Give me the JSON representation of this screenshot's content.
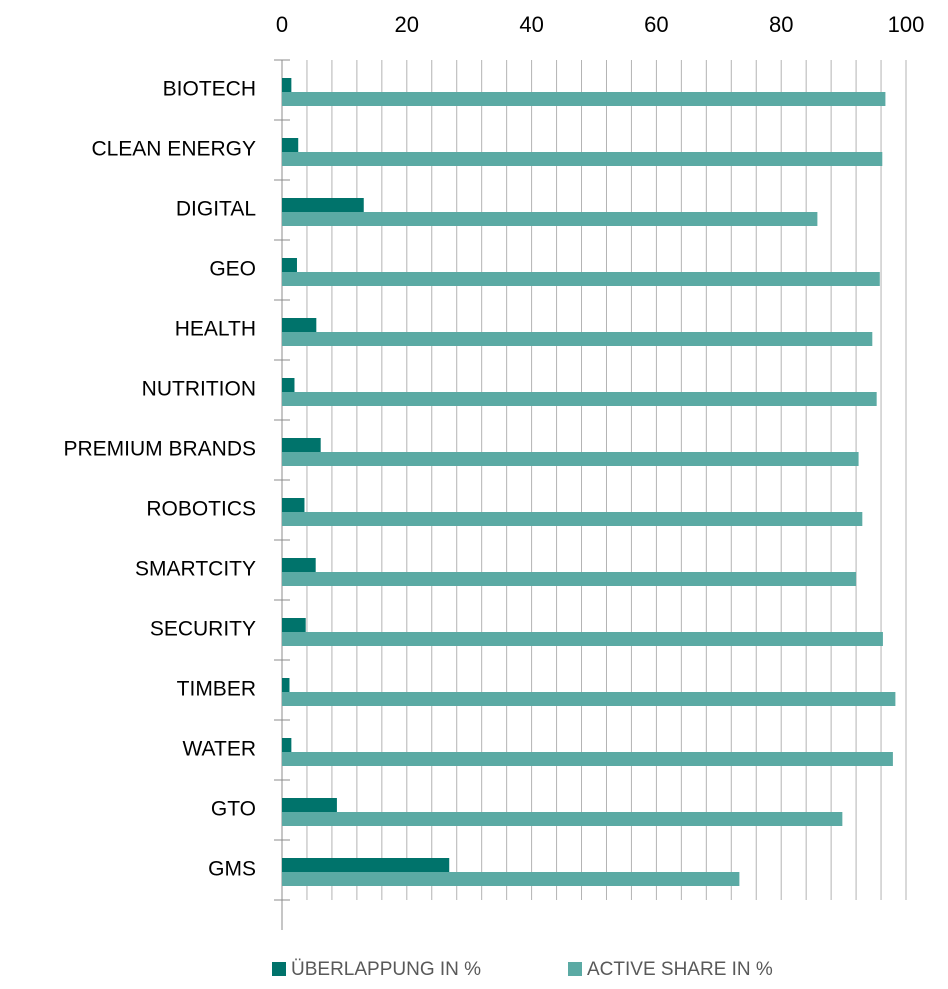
{
  "chart_data": {
    "type": "bar",
    "orientation": "horizontal",
    "categories": [
      "BIOTECH",
      "CLEAN ENERGY",
      "DIGITAL",
      "GEO",
      "HEALTH",
      "NUTRITION",
      "PREMIUM BRANDS",
      "ROBOTICS",
      "SMARTCITY",
      "SECURITY",
      "TIMBER",
      "WATER",
      "GTO",
      "GMS"
    ],
    "series": [
      {
        "name": "ÜBERLAPPUNG IN %",
        "color": "#00736B",
        "values": [
          1.5,
          2.6,
          13.1,
          2.4,
          5.5,
          2.0,
          6.2,
          3.6,
          5.4,
          3.8,
          1.2,
          1.5,
          8.8,
          26.8
        ]
      },
      {
        "name": "ACTIVE SHARE IN %",
        "color": "#5BAAA4",
        "values": [
          96.7,
          96.2,
          85.8,
          95.8,
          94.6,
          95.3,
          92.4,
          93.0,
          92.0,
          96.3,
          98.3,
          97.9,
          89.8,
          73.3
        ]
      }
    ],
    "xlim": [
      0,
      100
    ],
    "x_ticks": [
      "0",
      "20",
      "40",
      "60",
      "80",
      "100"
    ],
    "x_axis_position": "top",
    "grid": true,
    "legend_position": "bottom",
    "title": "",
    "xlabel": "",
    "ylabel": ""
  }
}
